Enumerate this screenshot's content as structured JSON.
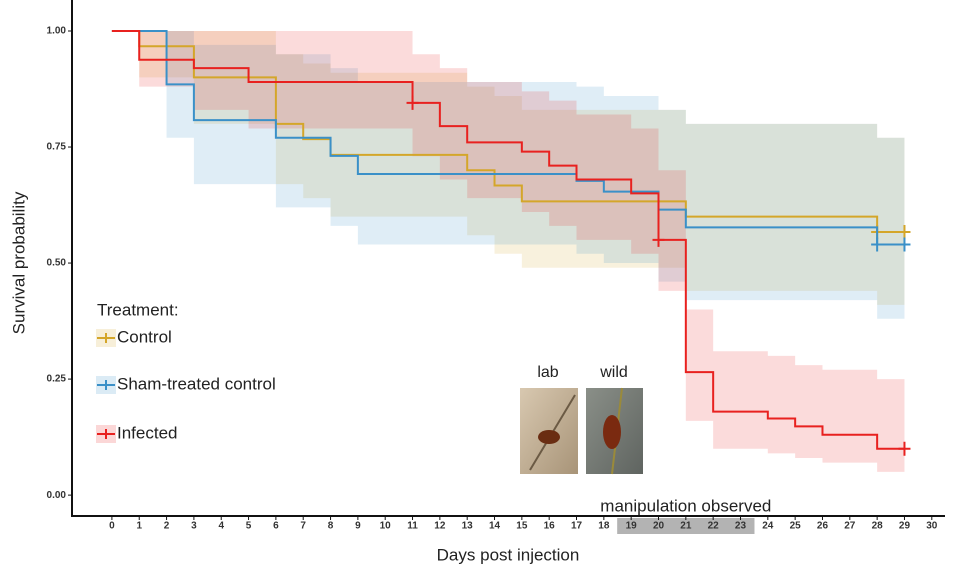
{
  "chart_data": {
    "type": "step",
    "x_label": "Days post injection",
    "y_label": "Survival probability",
    "xlim": [
      -1.46,
      30.3
    ],
    "ylim": [
      -0.045,
      1.056
    ],
    "xticks": [
      0,
      1,
      2,
      3,
      4,
      5,
      6,
      7,
      8,
      9,
      10,
      11,
      12,
      13,
      14,
      15,
      16,
      17,
      18,
      19,
      20,
      21,
      22,
      23,
      24,
      25,
      26,
      27,
      28,
      29,
      30
    ],
    "yticks": [
      {
        "value": 0,
        "label": "0.00"
      },
      {
        "value": 0.25,
        "label": "0.25"
      },
      {
        "value": 0.5,
        "label": "0.50"
      },
      {
        "value": 0.75,
        "label": "0.75"
      },
      {
        "value": 1,
        "label": "1.00"
      }
    ],
    "legend_title": "Treatment:",
    "legend_position": "left",
    "highlight": {
      "x": [
        19,
        23
      ],
      "label": "manipulation observed"
    },
    "inset_labels": [
      "lab",
      "wild"
    ],
    "series": [
      {
        "name": "Control",
        "color": "#d4a62a",
        "x": [
          0,
          1,
          3,
          6,
          7,
          8,
          13,
          14,
          15,
          21,
          28,
          29
        ],
        "values": [
          1,
          0.967,
          0.9,
          0.8,
          0.767,
          0.733,
          0.7,
          0.667,
          0.633,
          0.6,
          0.567,
          0.567
        ],
        "lower": [
          1,
          0.9,
          0.8,
          0.67,
          0.64,
          0.6,
          0.56,
          0.52,
          0.49,
          0.44,
          0.41,
          0.41
        ],
        "upper": [
          1,
          1,
          1,
          0.95,
          0.93,
          0.91,
          0.88,
          0.86,
          0.83,
          0.8,
          0.77,
          0.77
        ],
        "censor_x": [
          28,
          29
        ],
        "censor_y": [
          0.567,
          0.567
        ]
      },
      {
        "name": "Sham-treated control",
        "color": "#3a90c8",
        "x": [
          0,
          2,
          3,
          6,
          8,
          9,
          17,
          18,
          20,
          21,
          28,
          29
        ],
        "values": [
          1,
          0.885,
          0.808,
          0.77,
          0.731,
          0.692,
          0.677,
          0.654,
          0.615,
          0.577,
          0.54,
          0.54
        ],
        "lower": [
          1,
          0.77,
          0.67,
          0.62,
          0.58,
          0.54,
          0.52,
          0.5,
          0.46,
          0.42,
          0.38,
          0.38
        ],
        "upper": [
          1,
          1,
          0.97,
          0.95,
          0.92,
          0.89,
          0.88,
          0.86,
          0.83,
          0.8,
          0.77,
          0.77
        ],
        "censor_x": [
          28,
          29
        ],
        "censor_y": [
          0.54,
          0.54
        ]
      },
      {
        "name": "Infected",
        "color": "#e8211f",
        "x": [
          0,
          1,
          3,
          5,
          11,
          12,
          13,
          15,
          16,
          17,
          19,
          20,
          21,
          22,
          24,
          25,
          26,
          28,
          29
        ],
        "values": [
          1,
          0.938,
          0.92,
          0.89,
          0.845,
          0.795,
          0.76,
          0.74,
          0.71,
          0.68,
          0.65,
          0.55,
          0.265,
          0.18,
          0.165,
          0.148,
          0.13,
          0.1,
          0.1
        ],
        "lower": [
          1,
          0.88,
          0.83,
          0.79,
          0.73,
          0.68,
          0.64,
          0.61,
          0.58,
          0.55,
          0.52,
          0.44,
          0.16,
          0.1,
          0.09,
          0.08,
          0.07,
          0.05,
          0.05
        ],
        "upper": [
          1,
          1,
          1,
          1,
          0.95,
          0.92,
          0.89,
          0.87,
          0.85,
          0.82,
          0.79,
          0.7,
          0.4,
          0.31,
          0.3,
          0.28,
          0.27,
          0.25,
          0.25
        ],
        "censor_x": [
          11,
          20,
          29
        ],
        "censor_y": [
          0.845,
          0.55,
          0.1
        ]
      }
    ]
  }
}
